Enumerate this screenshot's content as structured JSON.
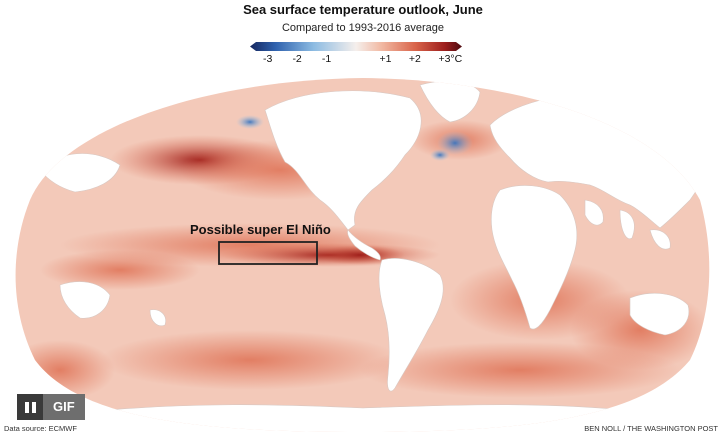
{
  "header": {
    "title": "Sea surface temperature outlook, June",
    "subtitle": "Compared to 1993-2016 average"
  },
  "legend": {
    "ticks": [
      {
        "label": "-3",
        "value": -3
      },
      {
        "label": "-2",
        "value": -2
      },
      {
        "label": "-1",
        "value": -1
      },
      {
        "label": "+1",
        "value": 1
      },
      {
        "label": "+2",
        "value": 2
      },
      {
        "label": "+3°C",
        "value": 3
      }
    ],
    "range": [
      -3.6,
      3.6
    ],
    "colors": {
      "cold": "#1c3f86",
      "cool": "#7fb0dc",
      "neutral": "#f4ecea",
      "warm": "#e07a5f",
      "hot": "#6b0e14"
    }
  },
  "map": {
    "annotation": "Possible super El Niño",
    "colors": {
      "land": "#ffffff",
      "ocean_base": "#f3c7b7",
      "warm": "#e2785c",
      "hot": "#a8261e",
      "cool": "#4f8fd0"
    }
  },
  "media_controls": {
    "pause_icon": "pause-icon",
    "gif_label": "GIF"
  },
  "footer": {
    "source": "Data source: ECMWF",
    "credit": "BEN NOLL / THE WASHINGTON POST"
  }
}
